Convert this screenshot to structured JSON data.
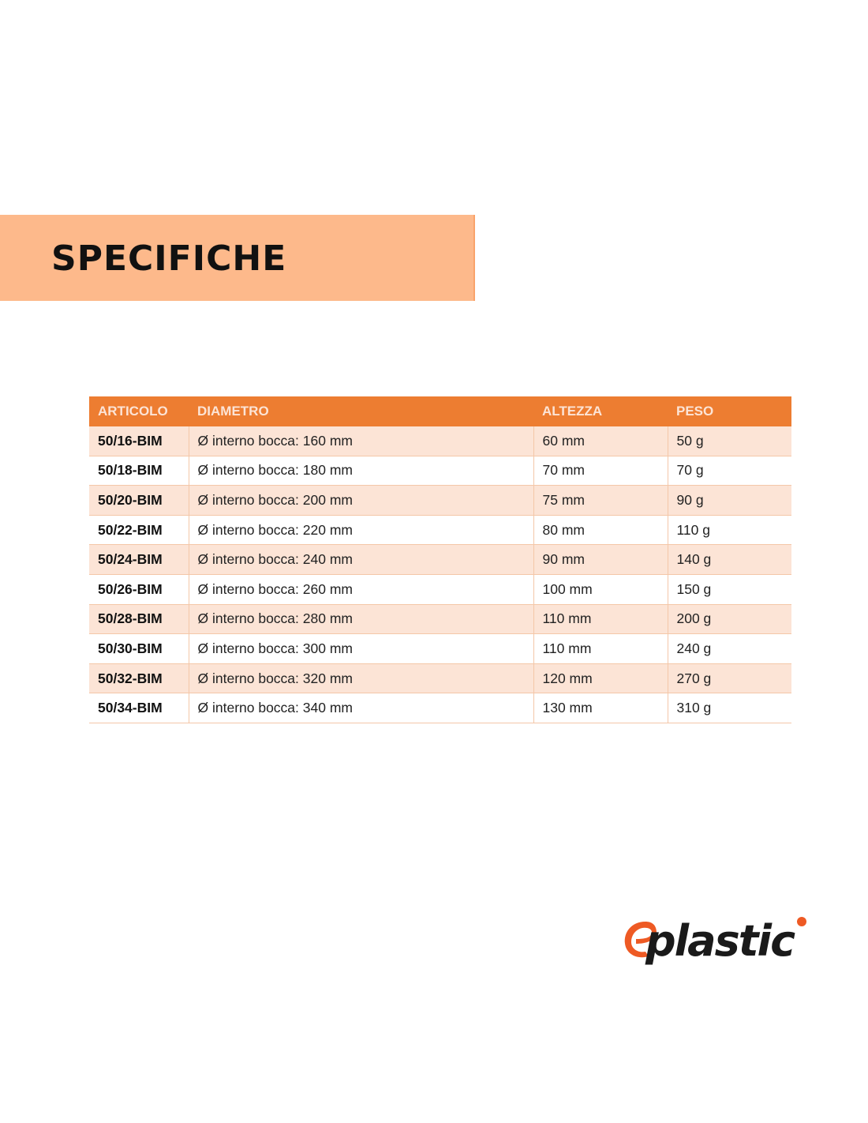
{
  "title": "SPECIFICHE",
  "table": {
    "headers": [
      "ARTICOLO",
      "DIAMETRO",
      "ALTEZZA",
      "PESO"
    ],
    "rows": [
      [
        "50/16-BIM",
        "Ø interno bocca: 160 mm",
        "60 mm",
        "50 g"
      ],
      [
        "50/18-BIM",
        "Ø interno bocca: 180 mm",
        "70 mm",
        "70 g"
      ],
      [
        "50/20-BIM",
        "Ø interno bocca: 200 mm",
        "75 mm",
        "90 g"
      ],
      [
        "50/22-BIM",
        "Ø interno bocca: 220 mm",
        "80 mm",
        "110 g"
      ],
      [
        "50/24-BIM",
        "Ø interno bocca: 240 mm",
        "90 mm",
        "140 g"
      ],
      [
        "50/26-BIM",
        "Ø interno bocca: 260 mm",
        "100 mm",
        "150 g"
      ],
      [
        "50/28-BIM",
        "Ø interno bocca: 280 mm",
        "110 mm",
        "200 g"
      ],
      [
        "50/30-BIM",
        "Ø interno bocca: 300 mm",
        "110 mm",
        "240 g"
      ],
      [
        "50/32-BIM",
        "Ø interno bocca: 320 mm",
        "120 mm",
        "270 g"
      ],
      [
        "50/34-BIM",
        "Ø interno bocca: 340 mm",
        "130 mm",
        "310 g"
      ]
    ]
  },
  "logo": {
    "text": "eplastic",
    "accent": "#EE5A24",
    "dark": "#1a1a1a"
  },
  "colors": {
    "header": "#ED7D31",
    "band": "#FDB98B",
    "row_alt": "#FCE4D6"
  }
}
